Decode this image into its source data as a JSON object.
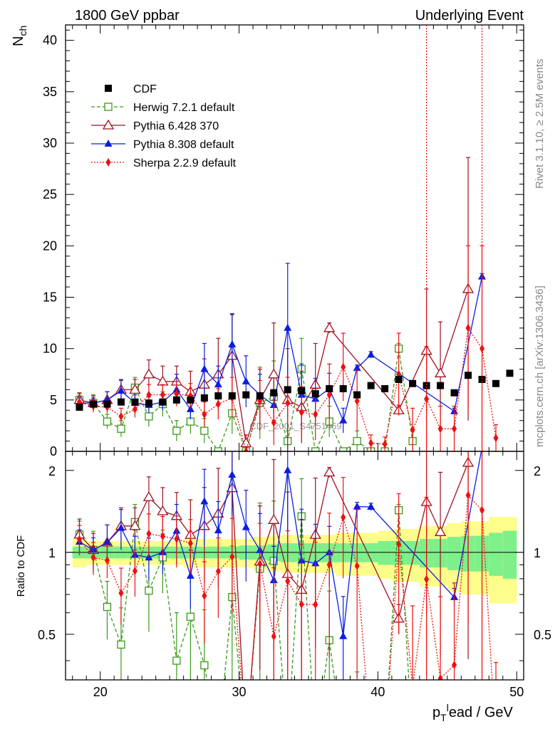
{
  "header": {
    "left": "1800 GeV ppbar",
    "right": "Underlying Event"
  },
  "side_labels": {
    "top": "Rivet 3.1.10, ≥ 2.5M events",
    "bottom": "mcplots.cern.ch [arXiv:1306.3436]"
  },
  "watermark": "CDF_2001_S4751469",
  "axes": {
    "top_ylabel_main": "N",
    "top_ylabel_sub": "ch",
    "bottom_ylabel": "Ratio to CDF",
    "xlabel_p": "p",
    "xlabel_sub": "T",
    "xlabel_sup": "l",
    "xlabel_rest": "ead / GeV",
    "xticks": [
      "20",
      "30",
      "40",
      "50"
    ],
    "top_yticks": [
      "0",
      "5",
      "10",
      "15",
      "20",
      "25",
      "30",
      "35",
      "40"
    ],
    "bottom_yticks": [
      "0.5",
      "1",
      "2"
    ]
  },
  "legend": [
    "CDF",
    "Herwig 7.2.1 default",
    "Pythia 6.428 370",
    "Pythia 8.308 default",
    "Sherpa 2.2.9 default"
  ],
  "colors": {
    "cdf": "#000000",
    "herwig": "#3a9a18",
    "pythia6": "#a01020",
    "pythia8": "#0a1ee0",
    "sherpa": "#f01010",
    "band_inner": "#7df08a",
    "band_outer": "#fdfd8a"
  },
  "chart_data": {
    "type": "line",
    "x": [
      18.5,
      19.5,
      20.5,
      21.5,
      22.5,
      23.5,
      24.5,
      25.5,
      26.5,
      27.5,
      28.5,
      29.5,
      30.5,
      31.5,
      32.5,
      33.5,
      34.5,
      35.5,
      36.5,
      37.5,
      38.5,
      39.5,
      40.5,
      41.5,
      42.5,
      43.5,
      44.5,
      45.5,
      46.5,
      47.5,
      48.5,
      49.5
    ],
    "xlim": [
      17.5,
      50.5
    ],
    "top_ylim": [
      0,
      41.5
    ],
    "ratio_ylim": [
      0.34,
      2.35
    ],
    "ratio_log": true,
    "series": [
      {
        "name": "CDF",
        "key": "cdf",
        "values": [
          4.3,
          4.6,
          4.6,
          4.8,
          4.8,
          4.7,
          4.8,
          5.0,
          5.0,
          5.2,
          5.4,
          5.4,
          5.5,
          5.4,
          5.7,
          6.0,
          5.9,
          5.6,
          6.1,
          6.1,
          5.5,
          6.4,
          6.1,
          7.0,
          6.6,
          6.4,
          6.4,
          5.7,
          7.4,
          7.0,
          6.6,
          7.6
        ],
        "band_inner": [
          0.05,
          0.05,
          0.05,
          0.05,
          0.05,
          0.05,
          0.05,
          0.05,
          0.05,
          0.05,
          0.05,
          0.05,
          0.06,
          0.06,
          0.07,
          0.08,
          0.08,
          0.08,
          0.08,
          0.08,
          0.08,
          0.08,
          0.1,
          0.1,
          0.1,
          0.12,
          0.12,
          0.14,
          0.15,
          0.15,
          0.18,
          0.2
        ],
        "band_outer": [
          0.12,
          0.1,
          0.1,
          0.1,
          0.1,
          0.1,
          0.1,
          0.1,
          0.12,
          0.12,
          0.12,
          0.12,
          0.12,
          0.14,
          0.15,
          0.16,
          0.16,
          0.16,
          0.16,
          0.18,
          0.18,
          0.18,
          0.2,
          0.22,
          0.22,
          0.25,
          0.25,
          0.28,
          0.3,
          0.3,
          0.35,
          0.35
        ]
      },
      {
        "name": "Herwig 7.2.1 default",
        "key": "herwig",
        "x": [
          18.5,
          19.5,
          20.5,
          21.5,
          22.5,
          23.5,
          24.5,
          25.5,
          26.5,
          27.5,
          28.5,
          29.5,
          30.5,
          31.5,
          32.5,
          33.5,
          34.5,
          35.5,
          36.5,
          37.5,
          38.5,
          39.5,
          40.5,
          41.5,
          42.5
        ],
        "values": [
          5.0,
          4.7,
          2.9,
          2.2,
          6.2,
          3.4,
          4.6,
          2.0,
          2.9,
          2.0,
          0.0,
          3.7,
          0.0,
          4.7,
          5.3,
          1.0,
          8.0,
          0.0,
          2.9,
          0.0,
          1.0,
          0.0,
          0.0,
          10.0,
          1.0
        ],
        "err": [
          0.6,
          0.8,
          0.7,
          0.8,
          1.0,
          1.0,
          1.2,
          1.0,
          1.2,
          1.2,
          0.0,
          2.0,
          0.0,
          3.5,
          3.5,
          1.0,
          3.0,
          0.0,
          1.5,
          0.0,
          1.0,
          0.0,
          0.0,
          0.5,
          1.0
        ]
      },
      {
        "name": "Pythia 6.428 370",
        "key": "pythia6",
        "x": [
          18.5,
          19.5,
          20.5,
          21.5,
          22.5,
          23.5,
          24.5,
          25.5,
          26.5,
          27.5,
          28.5,
          29.5,
          30.5,
          31.5,
          32.5,
          33.5,
          34.5,
          35.5,
          36.5,
          41.5,
          43.5,
          44.5,
          46.5
        ],
        "values": [
          5.0,
          4.7,
          5.0,
          6.0,
          6.0,
          7.5,
          6.8,
          6.8,
          5.8,
          6.5,
          7.5,
          9.3,
          0.8,
          5.0,
          7.5,
          5.0,
          4.3,
          6.5,
          12.0,
          4.0,
          9.8,
          7.6,
          15.8
        ],
        "err": [
          0.7,
          0.7,
          0.8,
          1.0,
          1.0,
          1.4,
          1.5,
          1.5,
          2.0,
          2.5,
          3.5,
          4.0,
          0.8,
          3.0,
          5.0,
          5.0,
          3.5,
          4.0,
          0.5,
          0.5,
          6.0,
          5.0,
          12.8
        ]
      },
      {
        "name": "Pythia 8.308 default",
        "key": "pythia8",
        "x": [
          18.5,
          19.5,
          20.5,
          21.5,
          22.5,
          23.5,
          24.5,
          25.5,
          26.5,
          27.5,
          28.5,
          29.5,
          30.5,
          31.5,
          32.5,
          33.5,
          34.5,
          35.5,
          36.5,
          37.5,
          38.5,
          39.5,
          45.5,
          47.5
        ],
        "values": [
          4.7,
          4.7,
          5.0,
          5.9,
          4.7,
          4.5,
          4.8,
          6.0,
          4.1,
          8.0,
          6.5,
          10.4,
          6.8,
          5.5,
          4.5,
          12.0,
          5.5,
          5.1,
          6.1,
          3.0,
          8.1,
          9.4,
          3.9,
          17.0
        ],
        "err": [
          0.5,
          0.5,
          0.8,
          1.0,
          0.8,
          0.8,
          0.8,
          1.5,
          1.0,
          2.5,
          1.8,
          3.0,
          2.5,
          2.0,
          1.5,
          6.3,
          3.0,
          2.0,
          1.5,
          1.2,
          0.3,
          0.3,
          0.3,
          0.3
        ]
      },
      {
        "name": "Sherpa 2.2.9 default",
        "key": "sherpa",
        "x": [
          18.5,
          19.5,
          20.5,
          21.5,
          22.5,
          23.5,
          24.5,
          25.5,
          26.5,
          27.5,
          28.5,
          29.5,
          30.5,
          31.5,
          32.5,
          33.5,
          34.5,
          35.5,
          36.5,
          37.5,
          38.5,
          39.5,
          40.5,
          41.5,
          42.5,
          43.5,
          44.5,
          45.5,
          46.5,
          47.5,
          48.5
        ],
        "values": [
          4.8,
          4.4,
          4.3,
          3.4,
          4.1,
          5.5,
          5.5,
          5.6,
          5.4,
          3.6,
          4.6,
          5.2,
          0.0,
          4.9,
          2.8,
          4.7,
          3.8,
          3.6,
          5.5,
          8.2,
          4.9,
          0.8,
          0.7,
          7.5,
          2.1,
          5.1,
          2.2,
          2.2,
          12.0,
          10.0,
          1.3
        ],
        "err": [
          0.6,
          0.6,
          0.6,
          0.8,
          0.8,
          1.0,
          1.0,
          1.2,
          1.2,
          1.2,
          1.5,
          2.0,
          0.0,
          2.0,
          2.2,
          2.5,
          2.5,
          2.5,
          3.0,
          3.3,
          3.0,
          0.8,
          0.7,
          4.0,
          2.1,
          5.1,
          2.2,
          2.2,
          8.0,
          10.0,
          1.3
        ]
      }
    ]
  }
}
